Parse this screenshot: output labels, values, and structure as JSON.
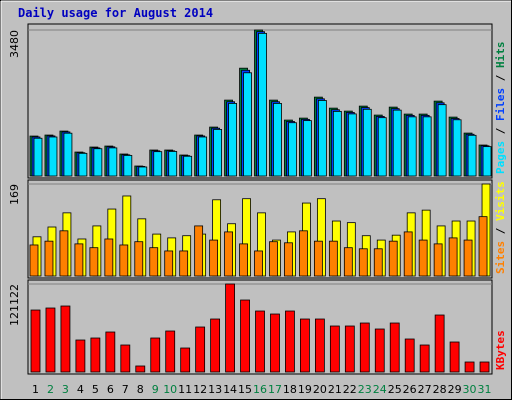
{
  "chart_data": [
    {
      "type": "bar",
      "title": "Daily usage for August 2014",
      "categories": [
        "1",
        "2",
        "3",
        "4",
        "5",
        "6",
        "7",
        "8",
        "9",
        "10",
        "11",
        "12",
        "13",
        "14",
        "15",
        "16",
        "17",
        "18",
        "19",
        "20",
        "21",
        "22",
        "23",
        "24",
        "25",
        "26",
        "27",
        "28",
        "29",
        "30",
        "31"
      ],
      "category_colors": [
        "#000000",
        "#008040",
        "#008040",
        "#000000",
        "#000000",
        "#000000",
        "#000000",
        "#000000",
        "#008040",
        "#008040",
        "#000000",
        "#000000",
        "#000000",
        "#000000",
        "#000000",
        "#008040",
        "#008040",
        "#000000",
        "#000000",
        "#000000",
        "#000000",
        "#000000",
        "#008040",
        "#008040",
        "#000000",
        "#000000",
        "#000000",
        "#000000",
        "#000000",
        "#008040",
        "#008040"
      ],
      "legend_separator": " / ",
      "ylim": [
        0,
        3480
      ],
      "yticks": [
        3480
      ],
      "series": [
        {
          "name": "Pages",
          "color": "#00e0ff",
          "values": [
            900,
            930,
            1020,
            540,
            650,
            670,
            490,
            215,
            580,
            585,
            470,
            930,
            1110,
            1730,
            2460,
            3400,
            1730,
            1270,
            1320,
            1800,
            1540,
            1480,
            1590,
            1390,
            1570,
            1410,
            1410,
            1700,
            1340,
            970,
            700
          ]
        },
        {
          "name": "Files",
          "color": "#0040ff",
          "values": [
            930,
            955,
            1050,
            555,
            670,
            695,
            505,
            228,
            600,
            600,
            485,
            955,
            1140,
            1770,
            2520,
            3440,
            1770,
            1300,
            1350,
            1840,
            1580,
            1515,
            1630,
            1420,
            1605,
            1445,
            1445,
            1745,
            1370,
            995,
            720
          ]
        },
        {
          "name": "Hits",
          "color": "#008040",
          "values": [
            952,
            976,
            1071,
            571,
            690,
            714,
            524,
            238,
            619,
            619,
            500,
            976,
            1166,
            1809,
            2570,
            3480,
            1809,
            1333,
            1380,
            1880,
            1618,
            1547,
            1666,
            1452,
            1642,
            1476,
            1476,
            1785,
            1404,
            1023,
            738
          ]
        }
      ]
    },
    {
      "type": "bar",
      "legend_separator": " / ",
      "ylim": [
        0,
        169
      ],
      "yticks": [
        169
      ],
      "series": [
        {
          "name": "Sites",
          "color": "#ff8000",
          "values": [
            57,
            64,
            83,
            59,
            52,
            68,
            57,
            63,
            52,
            46,
            46,
            92,
            66,
            81,
            59,
            46,
            63,
            61,
            83,
            64,
            64,
            52,
            50,
            50,
            64,
            81,
            66,
            59,
            70,
            66,
            109
          ]
        },
        {
          "name": "Visits",
          "color": "#ffff00",
          "values": [
            72,
            90,
            116,
            68,
            92,
            123,
            147,
            105,
            77,
            70,
            74,
            77,
            140,
            96,
            142,
            116,
            66,
            81,
            134,
            142,
            101,
            98,
            74,
            66,
            75,
            116,
            121,
            92,
            101,
            101,
            169
          ]
        }
      ]
    },
    {
      "type": "bar",
      "ylim": [
        0,
        121122
      ],
      "yticks": [
        121122
      ],
      "series": [
        {
          "name": "KBytes",
          "color": "#ff0000",
          "values": [
            85300,
            88060,
            90820,
            44030,
            46780,
            55040,
            37150,
            8260,
            46780,
            56420,
            33020,
            61920,
            72930,
            121122,
            99070,
            83940,
            79810,
            83940,
            72930,
            72930,
            63300,
            63300,
            67420,
            59170,
            67420,
            45410,
            37150,
            78430,
            41280,
            13760,
            13760
          ]
        }
      ]
    }
  ]
}
